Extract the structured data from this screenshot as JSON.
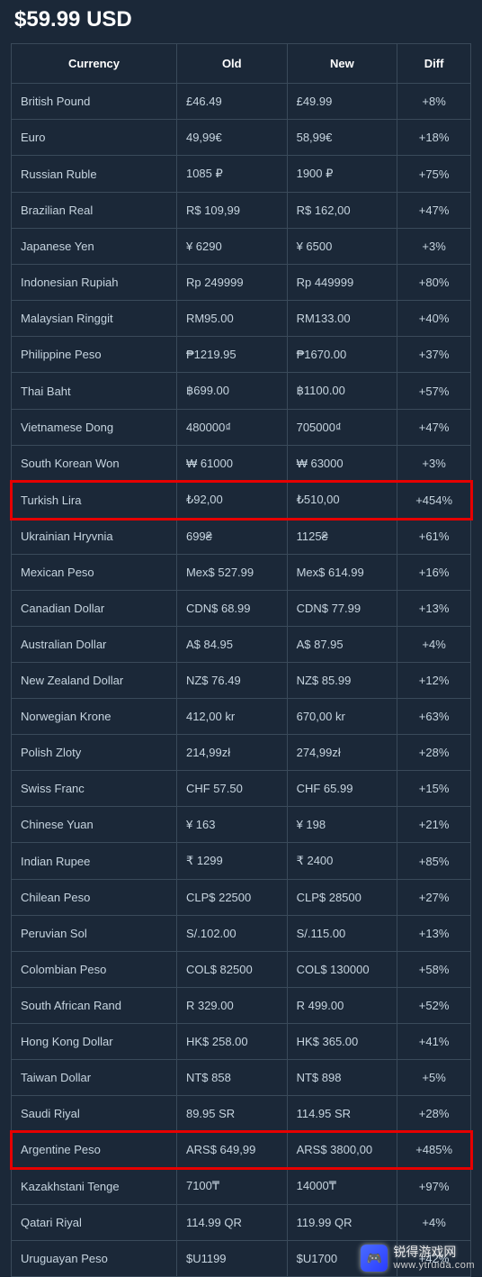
{
  "title": "$59.99 USD",
  "columns": [
    "Currency",
    "Old",
    "New",
    "Diff"
  ],
  "rows": [
    {
      "currency": "British Pound",
      "old": "£46.49",
      "new": "£49.99",
      "diff": "+8%",
      "highlight": false
    },
    {
      "currency": "Euro",
      "old": "49,99€",
      "new": "58,99€",
      "diff": "+18%",
      "highlight": false
    },
    {
      "currency": "Russian Ruble",
      "old": "1085 ₽",
      "new": "1900 ₽",
      "diff": "+75%",
      "highlight": false
    },
    {
      "currency": "Brazilian Real",
      "old": "R$ 109,99",
      "new": "R$ 162,00",
      "diff": "+47%",
      "highlight": false
    },
    {
      "currency": "Japanese Yen",
      "old": "¥ 6290",
      "new": "¥ 6500",
      "diff": "+3%",
      "highlight": false
    },
    {
      "currency": "Indonesian Rupiah",
      "old": "Rp 249999",
      "new": "Rp 449999",
      "diff": "+80%",
      "highlight": false
    },
    {
      "currency": "Malaysian Ringgit",
      "old": "RM95.00",
      "new": "RM133.00",
      "diff": "+40%",
      "highlight": false
    },
    {
      "currency": "Philippine Peso",
      "old": "₱1219.95",
      "new": "₱1670.00",
      "diff": "+37%",
      "highlight": false
    },
    {
      "currency": "Thai Baht",
      "old": "฿699.00",
      "new": "฿1100.00",
      "diff": "+57%",
      "highlight": false
    },
    {
      "currency": "Vietnamese Dong",
      "old": "480000₫",
      "new": "705000₫",
      "diff": "+47%",
      "highlight": false
    },
    {
      "currency": "South Korean Won",
      "old": "₩ 61000",
      "new": "₩ 63000",
      "diff": "+3%",
      "highlight": false
    },
    {
      "currency": "Turkish Lira",
      "old": "₺92,00",
      "new": "₺510,00",
      "diff": "+454%",
      "highlight": true
    },
    {
      "currency": "Ukrainian Hryvnia",
      "old": "699₴",
      "new": "1125₴",
      "diff": "+61%",
      "highlight": false
    },
    {
      "currency": "Mexican Peso",
      "old": "Mex$ 527.99",
      "new": "Mex$ 614.99",
      "diff": "+16%",
      "highlight": false
    },
    {
      "currency": "Canadian Dollar",
      "old": "CDN$ 68.99",
      "new": "CDN$ 77.99",
      "diff": "+13%",
      "highlight": false
    },
    {
      "currency": "Australian Dollar",
      "old": "A$ 84.95",
      "new": "A$ 87.95",
      "diff": "+4%",
      "highlight": false
    },
    {
      "currency": "New Zealand Dollar",
      "old": "NZ$ 76.49",
      "new": "NZ$ 85.99",
      "diff": "+12%",
      "highlight": false
    },
    {
      "currency": "Norwegian Krone",
      "old": "412,00 kr",
      "new": "670,00 kr",
      "diff": "+63%",
      "highlight": false
    },
    {
      "currency": "Polish Zloty",
      "old": "214,99zł",
      "new": "274,99zł",
      "diff": "+28%",
      "highlight": false
    },
    {
      "currency": "Swiss Franc",
      "old": "CHF 57.50",
      "new": "CHF 65.99",
      "diff": "+15%",
      "highlight": false
    },
    {
      "currency": "Chinese Yuan",
      "old": "¥ 163",
      "new": "¥ 198",
      "diff": "+21%",
      "highlight": false
    },
    {
      "currency": "Indian Rupee",
      "old": "₹ 1299",
      "new": "₹ 2400",
      "diff": "+85%",
      "highlight": false
    },
    {
      "currency": "Chilean Peso",
      "old": "CLP$ 22500",
      "new": "CLP$ 28500",
      "diff": "+27%",
      "highlight": false
    },
    {
      "currency": "Peruvian Sol",
      "old": "S/.102.00",
      "new": "S/.115.00",
      "diff": "+13%",
      "highlight": false
    },
    {
      "currency": "Colombian Peso",
      "old": "COL$ 82500",
      "new": "COL$ 130000",
      "diff": "+58%",
      "highlight": false
    },
    {
      "currency": "South African Rand",
      "old": "R 329.00",
      "new": "R 499.00",
      "diff": "+52%",
      "highlight": false
    },
    {
      "currency": "Hong Kong Dollar",
      "old": "HK$ 258.00",
      "new": "HK$ 365.00",
      "diff": "+41%",
      "highlight": false
    },
    {
      "currency": "Taiwan Dollar",
      "old": "NT$ 858",
      "new": "NT$ 898",
      "diff": "+5%",
      "highlight": false
    },
    {
      "currency": "Saudi Riyal",
      "old": "89.95 SR",
      "new": "114.95 SR",
      "diff": "+28%",
      "highlight": false
    },
    {
      "currency": "Argentine Peso",
      "old": "ARS$ 649,99",
      "new": "ARS$ 3800,00",
      "diff": "+485%",
      "highlight": true
    },
    {
      "currency": "Kazakhstani Tenge",
      "old": "7100₸",
      "new": "14000₸",
      "diff": "+97%",
      "highlight": false
    },
    {
      "currency": "Qatari Riyal",
      "old": "114.99 QR",
      "new": "119.99 QR",
      "diff": "+4%",
      "highlight": false
    },
    {
      "currency": "Uruguayan Peso",
      "old": "$U1199",
      "new": "$U1700",
      "diff": "+42%",
      "highlight": false
    }
  ],
  "watermark": {
    "logo_text": "🎮",
    "main": "锐得游戏网",
    "sub": "www.ytruida.com"
  },
  "colors": {
    "background": "#1b2838",
    "text": "#c6d4df",
    "header_text": "#ffffff",
    "border": "#3a4a5a",
    "highlight_border": "#e60000"
  }
}
